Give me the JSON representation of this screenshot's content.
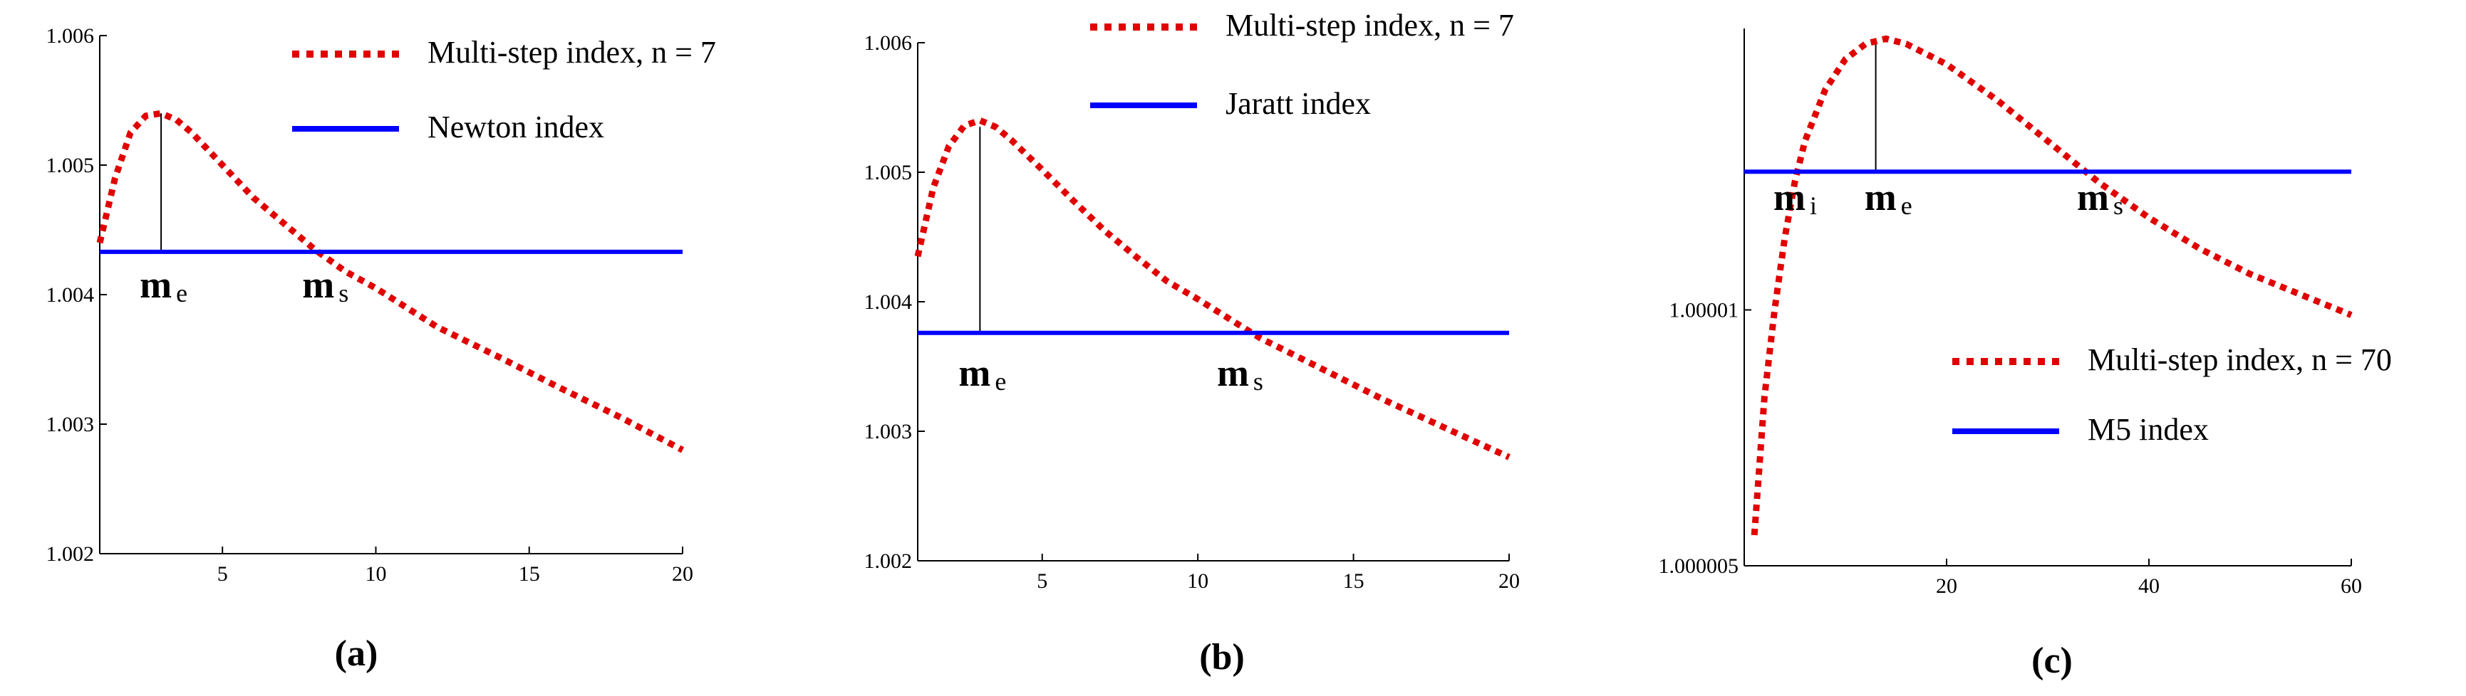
{
  "chart_data": [
    {
      "type": "line",
      "caption": "(a)",
      "xlim": [
        1,
        20
      ],
      "ylim": [
        1.002,
        1.006
      ],
      "xticks": [
        "5",
        "10",
        "15",
        "20"
      ],
      "yticks": [
        "1.002",
        "1.003",
        "1.004",
        "1.005",
        "1.006"
      ],
      "legend": [
        {
          "label": "Multi-step index, n = 7",
          "color": "#e00000",
          "style": "dotted"
        },
        {
          "label": "Newton index",
          "color": "#0000ff",
          "style": "solid"
        }
      ],
      "series": [
        {
          "name": "Multi-step index, n = 7",
          "color": "#e00000",
          "x": [
            1,
            1.5,
            2,
            2.5,
            3,
            3.5,
            4,
            5,
            6,
            7,
            8,
            9,
            10,
            12,
            14,
            16,
            18,
            20
          ],
          "y": [
            1.0044,
            1.0049,
            1.00525,
            1.00538,
            1.0054,
            1.00535,
            1.00525,
            1.005,
            1.00475,
            1.00455,
            1.00435,
            1.00418,
            1.00405,
            1.00375,
            1.00352,
            1.00328,
            1.00305,
            1.0028
          ]
        },
        {
          "name": "Newton index",
          "color": "#0000ff",
          "x": [
            1,
            20
          ],
          "y": [
            1.00433,
            1.00433
          ]
        }
      ],
      "annotations": [
        {
          "main": "m",
          "sub": "e",
          "x": 3
        },
        {
          "main": "m",
          "sub": "s",
          "x": 8.3
        }
      ],
      "vline": {
        "x": 3,
        "y_top": 1.0054,
        "y_bottom": 1.00433
      }
    },
    {
      "type": "line",
      "caption": "(b)",
      "xlim": [
        1,
        20
      ],
      "ylim": [
        1.002,
        1.006
      ],
      "xticks": [
        "5",
        "10",
        "15",
        "20"
      ],
      "yticks": [
        "1.002",
        "1.003",
        "1.004",
        "1.005",
        "1.006"
      ],
      "legend": [
        {
          "label": "Multi-step index, n = 7",
          "color": "#e00000",
          "style": "dotted"
        },
        {
          "label": "Jaratt index",
          "color": "#0000ff",
          "style": "solid"
        }
      ],
      "series": [
        {
          "name": "Multi-step index, n = 7",
          "color": "#e00000",
          "x": [
            1,
            1.5,
            2,
            2.5,
            3,
            3.5,
            4,
            5,
            6,
            7,
            8,
            9,
            10,
            12,
            14,
            16,
            18,
            20
          ],
          "y": [
            1.00435,
            1.00488,
            1.0052,
            1.00536,
            1.0054,
            1.00535,
            1.00525,
            1.00502,
            1.00478,
            1.00455,
            1.00435,
            1.00416,
            1.00402,
            1.00372,
            1.00348,
            1.00324,
            1.00302,
            1.0028
          ]
        },
        {
          "name": "Jaratt index",
          "color": "#0000ff",
          "x": [
            1,
            20
          ],
          "y": [
            1.00376,
            1.00376
          ]
        }
      ],
      "annotations": [
        {
          "main": "m",
          "sub": "e",
          "x": 3
        },
        {
          "main": "m",
          "sub": "s",
          "x": 11.3
        }
      ],
      "vline": {
        "x": 3,
        "y_top": 1.00535,
        "y_bottom": 1.00376
      }
    },
    {
      "type": "line",
      "caption": "(c)",
      "xlim": [
        0,
        60
      ],
      "ylim": [
        1.000005,
        1.0000155
      ],
      "xticks": [
        "20",
        "40",
        "60"
      ],
      "yticks": [
        "1.000005",
        "1.00001"
      ],
      "legend": [
        {
          "label": "Multi-step index, n = 70",
          "color": "#e00000",
          "style": "dotted"
        },
        {
          "label": "M5 index",
          "color": "#0000ff",
          "style": "solid"
        }
      ],
      "series": [
        {
          "name": "Multi-step index, n = 70",
          "color": "#e00000",
          "x": [
            1,
            2,
            3,
            4,
            5,
            6,
            8,
            10,
            12,
            14,
            16,
            20,
            25,
            30,
            35,
            40,
            45,
            50,
            55,
            60
          ],
          "y": [
            1.0000056,
            1.0000083,
            1.00001,
            1.0000114,
            1.0000125,
            1.0000133,
            1.0000143,
            1.0000149,
            1.0000152,
            1.0000153,
            1.0000152,
            1.0000148,
            1.0000141,
            1.0000133,
            1.0000125,
            1.0000118,
            1.0000112,
            1.0000107,
            1.0000103,
            1.0000099
          ]
        },
        {
          "name": "M5 index",
          "color": "#0000ff",
          "x": [
            0,
            60
          ],
          "y": [
            1.0000127,
            1.0000127
          ]
        }
      ],
      "annotations": [
        {
          "main": "m",
          "sub": "i",
          "x": 5
        },
        {
          "main": "m",
          "sub": "e",
          "x": 14
        },
        {
          "main": "m",
          "sub": "s",
          "x": 35
        }
      ],
      "vline": {
        "x": 13,
        "y_top": 1.0000153,
        "y_bottom": 1.0000127
      }
    }
  ]
}
